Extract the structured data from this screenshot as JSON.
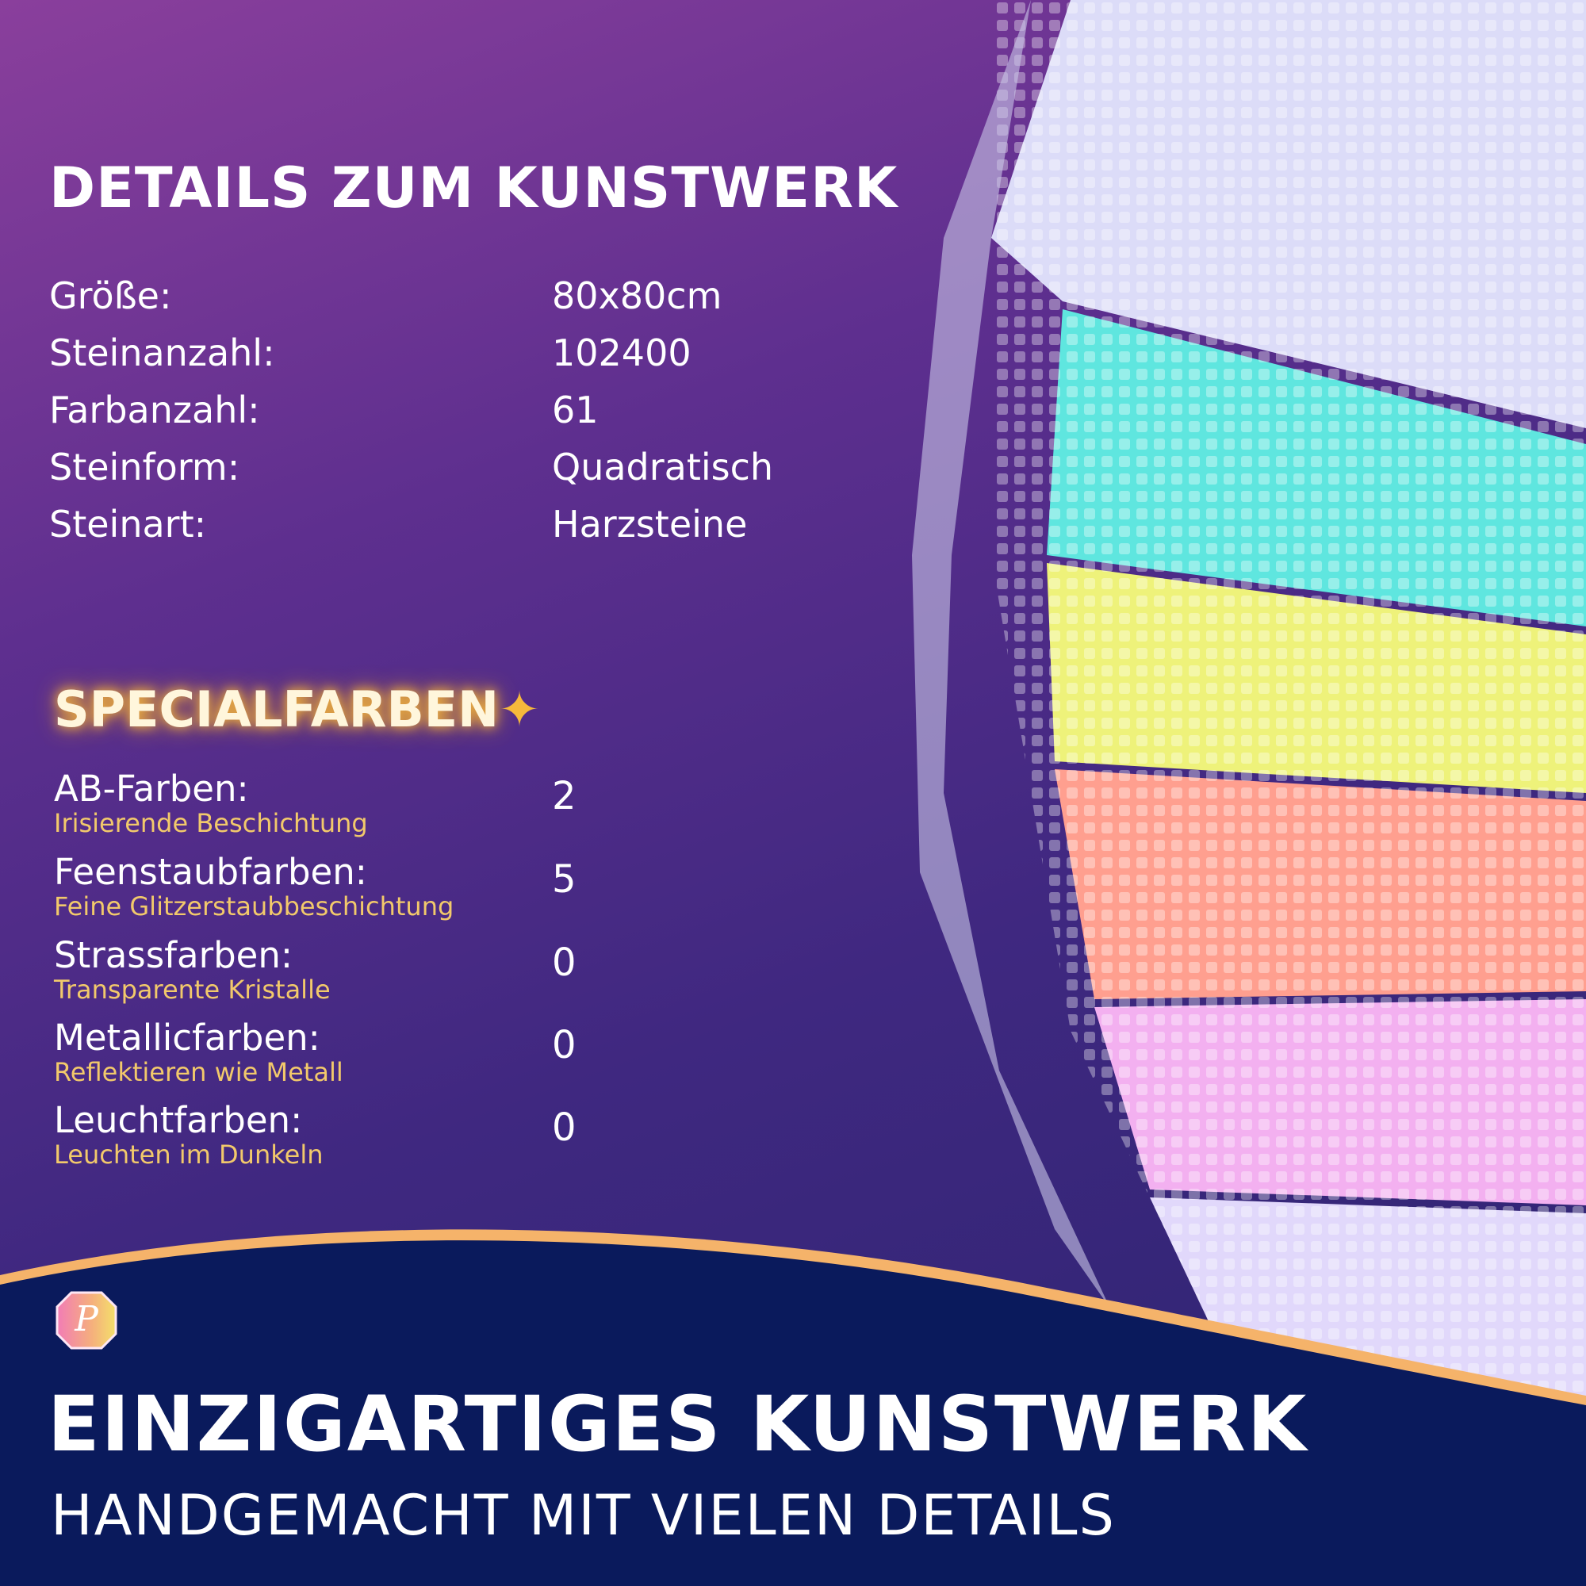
{
  "details": {
    "title": "DETAILS ZUM KUNSTWERK",
    "rows": [
      {
        "label": "Größe:",
        "value": "80x80cm"
      },
      {
        "label": "Steinanzahl:",
        "value": "102400"
      },
      {
        "label": "Farbanzahl:",
        "value": "61"
      },
      {
        "label": "Steinform:",
        "value": "Quadratisch"
      },
      {
        "label": "Steinart:",
        "value": "Harzsteine"
      }
    ]
  },
  "special": {
    "title": "SPECIALFARBEN",
    "icon": "sparkles-icon",
    "rows": [
      {
        "label": "AB-Farben:",
        "sub": "Irisierende Beschichtung",
        "value": "2"
      },
      {
        "label": "Feenstaubfarben:",
        "sub": "Feine Glitzerstaubbeschichtung",
        "value": "5"
      },
      {
        "label": "Strassfarben:",
        "sub": "Transparente Kristalle",
        "value": "0"
      },
      {
        "label": "Metallicfarben:",
        "sub": "Reflektieren wie Metall",
        "value": "0"
      },
      {
        "label": "Leuchtfarben:",
        "sub": "Leuchten im Dunkeln",
        "value": "0"
      }
    ]
  },
  "footer": {
    "heading": "EINZIGARTIGES KUNSTWERK",
    "subheading": "HANDGEMACHT MIT VIELEN DETAILS",
    "logo_letter": "P"
  },
  "colors": {
    "navy": "#0a1a5c",
    "gold": "#f2c96b",
    "accent_line": "#f5b36a"
  }
}
